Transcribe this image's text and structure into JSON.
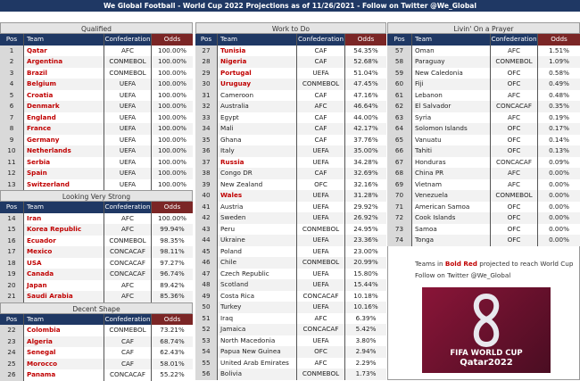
{
  "title": "We Global Football - World Cup 2022 Projections as of 11/26/2021 - Follow on Twitter @We_Global",
  "columns": {
    "pos": "Pos",
    "team": "Team",
    "conf": "Confederation",
    "odds": "Odds"
  },
  "colors": {
    "header": "#1f3864",
    "odds_header": "#7b2626",
    "qualified_text": "#c00000"
  },
  "sections": [
    {
      "title": "Qualified",
      "rows": [
        [
          1,
          "Qatar",
          "AFC",
          "100.00%",
          true
        ],
        [
          2,
          "Argentina",
          "CONMEBOL",
          "100.00%",
          true
        ],
        [
          3,
          "Brazil",
          "CONMEBOL",
          "100.00%",
          true
        ],
        [
          4,
          "Belgium",
          "UEFA",
          "100.00%",
          true
        ],
        [
          5,
          "Croatia",
          "UEFA",
          "100.00%",
          true
        ],
        [
          6,
          "Denmark",
          "UEFA",
          "100.00%",
          true
        ],
        [
          7,
          "England",
          "UEFA",
          "100.00%",
          true
        ],
        [
          8,
          "France",
          "UEFA",
          "100.00%",
          true
        ],
        [
          9,
          "Germany",
          "UEFA",
          "100.00%",
          true
        ],
        [
          10,
          "Netherlands",
          "UEFA",
          "100.00%",
          true
        ],
        [
          11,
          "Serbia",
          "UEFA",
          "100.00%",
          true
        ],
        [
          12,
          "Spain",
          "UEFA",
          "100.00%",
          true
        ],
        [
          13,
          "Switzerland",
          "UEFA",
          "100.00%",
          true
        ]
      ]
    },
    {
      "title": "Looking Very Strong",
      "rows": [
        [
          14,
          "Iran",
          "AFC",
          "100.00%",
          true
        ],
        [
          15,
          "Korea Republic",
          "AFC",
          "99.94%",
          true
        ],
        [
          16,
          "Ecuador",
          "CONMEBOL",
          "98.35%",
          true
        ],
        [
          17,
          "Mexico",
          "CONCACAF",
          "98.11%",
          true
        ],
        [
          18,
          "USA",
          "CONCACAF",
          "97.27%",
          true
        ],
        [
          19,
          "Canada",
          "CONCACAF",
          "96.74%",
          true
        ],
        [
          20,
          "Japan",
          "AFC",
          "89.42%",
          true
        ],
        [
          21,
          "Saudi Arabia",
          "AFC",
          "85.36%",
          true
        ]
      ]
    },
    {
      "title": "Decent Shape",
      "rows": [
        [
          22,
          "Colombia",
          "CONMEBOL",
          "73.21%",
          true
        ],
        [
          23,
          "Algeria",
          "CAF",
          "68.74%",
          true
        ],
        [
          24,
          "Senegal",
          "CAF",
          "62.43%",
          true
        ],
        [
          25,
          "Morocco",
          "CAF",
          "58.01%",
          true
        ],
        [
          26,
          "Panama",
          "CONCACAF",
          "55.22%",
          true
        ]
      ]
    },
    {
      "title": "Work to Do",
      "rows": [
        [
          27,
          "Tunisia",
          "CAF",
          "54.35%",
          true
        ],
        [
          28,
          "Nigeria",
          "CAF",
          "52.68%",
          true
        ],
        [
          29,
          "Portugal",
          "UEFA",
          "51.04%",
          true
        ],
        [
          30,
          "Uruguay",
          "CONMEBOL",
          "47.45%",
          true
        ],
        [
          31,
          "Cameroon",
          "CAF",
          "47.16%",
          false
        ],
        [
          32,
          "Australia",
          "AFC",
          "46.64%",
          false
        ],
        [
          33,
          "Egypt",
          "CAF",
          "44.00%",
          false
        ],
        [
          34,
          "Mali",
          "CAF",
          "42.17%",
          false
        ],
        [
          35,
          "Ghana",
          "CAF",
          "37.76%",
          false
        ],
        [
          36,
          "Italy",
          "UEFA",
          "35.00%",
          false
        ],
        [
          37,
          "Russia",
          "UEFA",
          "34.28%",
          true
        ],
        [
          38,
          "Congo DR",
          "CAF",
          "32.69%",
          false
        ],
        [
          39,
          "New Zealand",
          "OFC",
          "32.16%",
          false
        ],
        [
          40,
          "Wales",
          "UEFA",
          "31.28%",
          true
        ],
        [
          41,
          "Austria",
          "UEFA",
          "29.92%",
          false
        ],
        [
          42,
          "Sweden",
          "UEFA",
          "26.92%",
          false
        ],
        [
          43,
          "Peru",
          "CONMEBOL",
          "24.95%",
          false
        ],
        [
          44,
          "Ukraine",
          "UEFA",
          "23.36%",
          false
        ],
        [
          45,
          "Poland",
          "UEFA",
          "23.00%",
          false
        ],
        [
          46,
          "Chile",
          "CONMEBOL",
          "20.99%",
          false
        ],
        [
          47,
          "Czech Republic",
          "UEFA",
          "15.80%",
          false
        ],
        [
          48,
          "Scotland",
          "UEFA",
          "15.44%",
          false
        ],
        [
          49,
          "Costa Rica",
          "CONCACAF",
          "10.18%",
          false
        ],
        [
          50,
          "Turkey",
          "UEFA",
          "10.16%",
          false
        ],
        [
          51,
          "Iraq",
          "AFC",
          "6.39%",
          false
        ],
        [
          52,
          "Jamaica",
          "CONCACAF",
          "5.42%",
          false
        ],
        [
          53,
          "North Macedonia",
          "UEFA",
          "3.80%",
          false
        ],
        [
          54,
          "Papua New Guinea",
          "OFC",
          "2.94%",
          false
        ],
        [
          55,
          "United Arab Emirates",
          "AFC",
          "2.29%",
          false
        ],
        [
          56,
          "Bolivia",
          "CONMEBOL",
          "1.73%",
          false
        ]
      ]
    },
    {
      "title": "Livin' On a Prayer",
      "rows": [
        [
          57,
          "Oman",
          "AFC",
          "1.51%",
          false
        ],
        [
          58,
          "Paraguay",
          "CONMEBOL",
          "1.09%",
          false
        ],
        [
          59,
          "New Caledonia",
          "OFC",
          "0.58%",
          false
        ],
        [
          60,
          "Fiji",
          "OFC",
          "0.49%",
          false
        ],
        [
          61,
          "Lebanon",
          "AFC",
          "0.48%",
          false
        ],
        [
          62,
          "El Salvador",
          "CONCACAF",
          "0.35%",
          false
        ],
        [
          63,
          "Syria",
          "AFC",
          "0.19%",
          false
        ],
        [
          64,
          "Solomon Islands",
          "OFC",
          "0.17%",
          false
        ],
        [
          65,
          "Vanuatu",
          "OFC",
          "0.14%",
          false
        ],
        [
          66,
          "Tahiti",
          "OFC",
          "0.13%",
          false
        ],
        [
          67,
          "Honduras",
          "CONCACAF",
          "0.09%",
          false
        ],
        [
          68,
          "China PR",
          "AFC",
          "0.00%",
          false
        ],
        [
          69,
          "Vietnam",
          "AFC",
          "0.00%",
          false
        ],
        [
          70,
          "Venezuela",
          "CONMEBOL",
          "0.00%",
          false
        ],
        [
          71,
          "American Samoa",
          "OFC",
          "0.00%",
          false
        ],
        [
          72,
          "Cook Islands",
          "OFC",
          "0.00%",
          false
        ],
        [
          73,
          "Samoa",
          "OFC",
          "0.00%",
          false
        ],
        [
          74,
          "Tonga",
          "OFC",
          "0.00%",
          false
        ]
      ]
    }
  ],
  "note": {
    "line1_pre": "Teams in ",
    "line1_red": "Bold Red",
    "line1_post": " projected to reach World Cup",
    "line2": "Follow on Twitter @We_Global"
  },
  "logo": {
    "line1": "FIFA WORLD CUP",
    "line2": "Qatar2022"
  }
}
